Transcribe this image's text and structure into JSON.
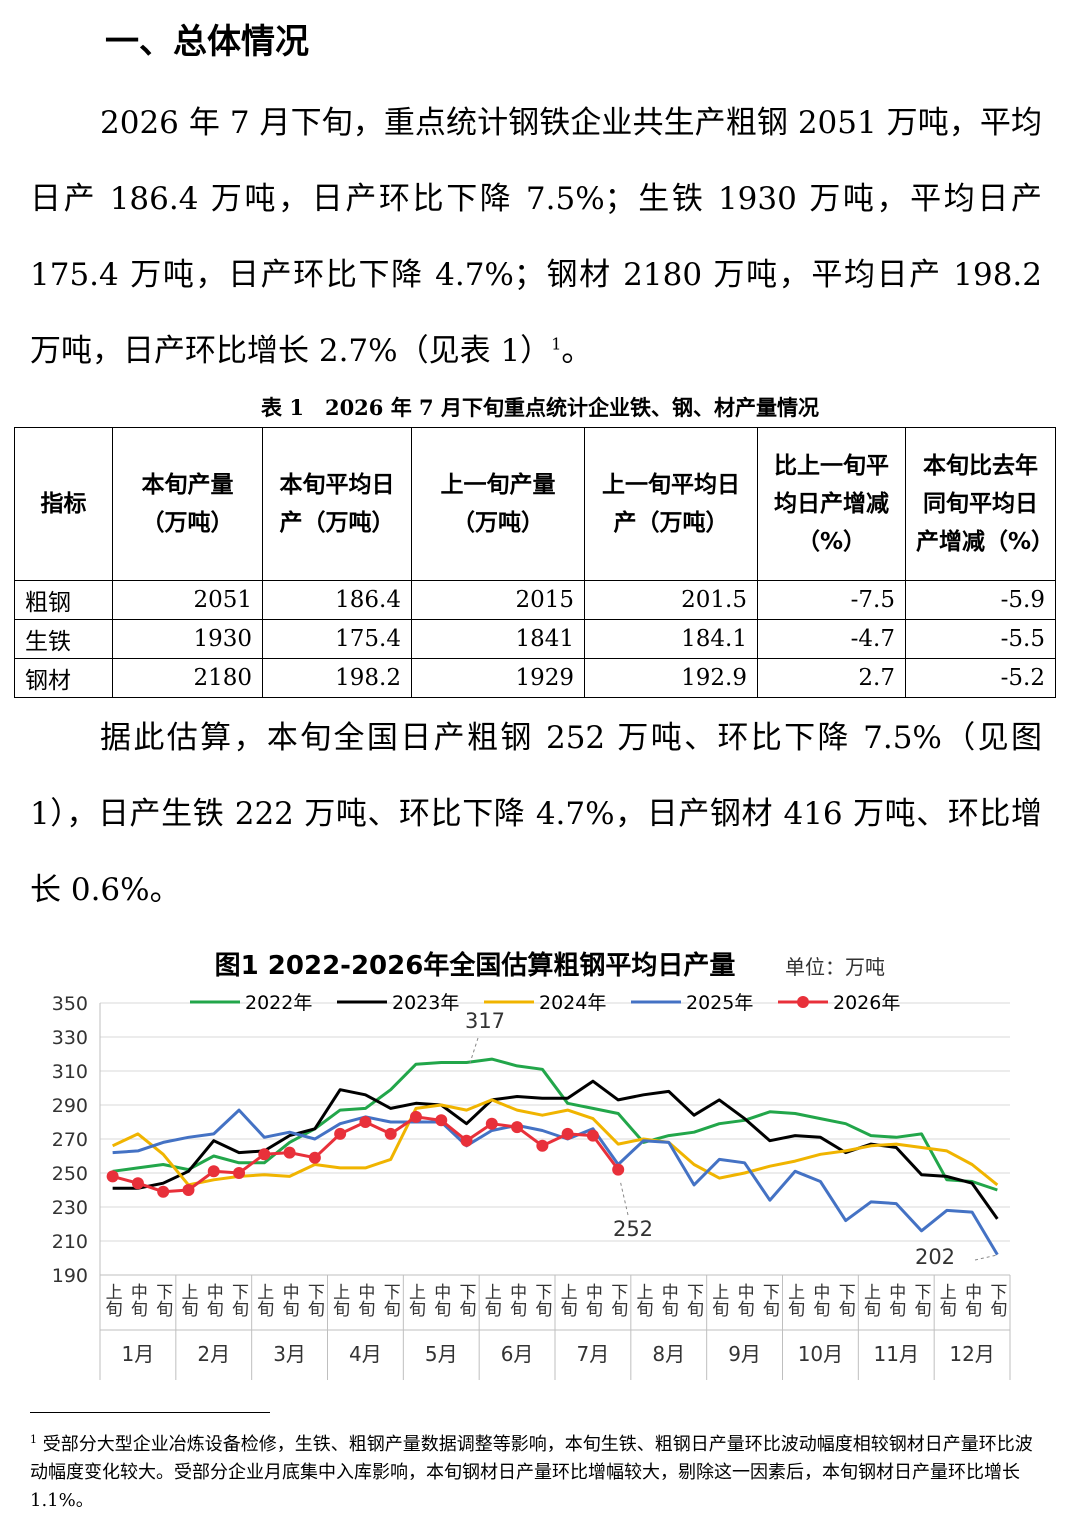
{
  "heading": "一、总体情况",
  "paragraph1": {
    "text": "2026 年 7 月下旬，重点统计钢铁企业共生产粗钢 2051 万吨，平均日产 186.4 万吨，日产环比下降 7.5%；生铁 1930 万吨，平均日产 175.4 万吨，日产环比下降 4.7%；钢材 2180 万吨，平均日产 198.2 万吨，日产环比增长 2.7%（见表 1）",
    "note_ref": "1",
    "end": "。"
  },
  "table": {
    "caption": "表 1　2026 年 7 月下旬重点统计企业铁、钢、材产量情况",
    "header": [
      "指标",
      "本旬产量（万吨）",
      "本旬平均日产（万吨）",
      "上一旬产量（万吨）",
      "上一旬平均日产（万吨）",
      "比上一旬平均日产增减（%）",
      "本旬比去年同旬平均日产增减（%）"
    ],
    "rows": [
      [
        "粗钢",
        "2051",
        "186.4",
        "2015",
        "201.5",
        "-7.5",
        "-5.9"
      ],
      [
        "生铁",
        "1930",
        "175.4",
        "1841",
        "184.1",
        "-4.7",
        "-5.5"
      ],
      [
        "钢材",
        "2180",
        "198.2",
        "1929",
        "192.9",
        "2.7",
        "-5.2"
      ]
    ]
  },
  "paragraph2": "据此估算，本旬全国日产粗钢 252 万吨、环比下降 7.5%（见图 1），日产生铁 222 万吨、环比下降 4.7%，日产钢材 416 万吨、环比增长 0.6%。",
  "chart_data": {
    "type": "line",
    "title": "图1  2022-2026年全国估算粗钢平均日产量",
    "unit": "单位：万吨",
    "categories": [
      "上旬",
      "中旬",
      "下旬",
      "上旬",
      "中旬",
      "下旬",
      "上旬",
      "中旬",
      "下旬",
      "上旬",
      "中旬",
      "下旬",
      "上旬",
      "中旬",
      "下旬",
      "上旬",
      "中旬",
      "下旬",
      "上旬",
      "中旬",
      "下旬",
      "上旬",
      "中旬",
      "下旬",
      "上旬",
      "中旬",
      "下旬",
      "上旬",
      "中旬",
      "下旬",
      "上旬",
      "中旬",
      "下旬",
      "上旬",
      "中旬",
      "下旬"
    ],
    "months": [
      "1月",
      "2月",
      "3月",
      "4月",
      "5月",
      "6月",
      "7月",
      "8月",
      "9月",
      "10月",
      "11月",
      "12月"
    ],
    "ylim": [
      190,
      350
    ],
    "yticks": [
      190,
      210,
      230,
      250,
      270,
      290,
      310,
      330,
      350
    ],
    "grid": true,
    "legend": "top",
    "series": [
      {
        "name": "2022年",
        "color": "#22a64a",
        "values": [
          251,
          253,
          255,
          252,
          260,
          256,
          256,
          268,
          276,
          287,
          288,
          299,
          314,
          315,
          315,
          317,
          313,
          311,
          291,
          288,
          285,
          268,
          272,
          274,
          279,
          281,
          286,
          285,
          282,
          279,
          272,
          271,
          273,
          246,
          245,
          240
        ]
      },
      {
        "name": "2023年",
        "color": "#000000",
        "values": [
          241,
          241,
          244,
          251,
          269,
          262,
          263,
          272,
          276,
          299,
          296,
          288,
          291,
          290,
          279,
          293,
          295,
          294,
          294,
          304,
          293,
          296,
          298,
          284,
          293,
          282,
          269,
          272,
          271,
          262,
          267,
          265,
          249,
          248,
          244,
          223
        ]
      },
      {
        "name": "2024年",
        "color": "#f0b400",
        "values": [
          266,
          273,
          261,
          243,
          246,
          248,
          249,
          248,
          255,
          253,
          253,
          258,
          288,
          290,
          287,
          293,
          287,
          284,
          287,
          282,
          267,
          270,
          268,
          255,
          247,
          250,
          254,
          257,
          261,
          263,
          266,
          267,
          265,
          263,
          255,
          243
        ]
      },
      {
        "name": "2025年",
        "color": "#4472c4",
        "values": [
          262,
          263,
          268,
          271,
          273,
          287,
          271,
          274,
          270,
          279,
          283,
          280,
          280,
          280,
          266,
          275,
          278,
          275,
          270,
          276,
          255,
          269,
          268,
          243,
          258,
          256,
          234,
          251,
          245,
          222,
          233,
          232,
          216,
          228,
          227,
          202
        ]
      },
      {
        "name": "2026年",
        "color": "#e8303a",
        "markers": true,
        "values": [
          248,
          244,
          239,
          240,
          251,
          250,
          261,
          262,
          259,
          273,
          280,
          273,
          283,
          281,
          269,
          279,
          277,
          266,
          273,
          272,
          252,
          null,
          null,
          null,
          null,
          null,
          null,
          null,
          null,
          null,
          null,
          null,
          null,
          null,
          null,
          null
        ]
      }
    ],
    "annotations": [
      "317",
      "252",
      "202"
    ]
  },
  "footnote": {
    "ref": "1",
    "text": "受部分大型企业冶炼设备检修，生铁、粗钢产量数据调整等影响，本旬生铁、粗钢日产量环比波动幅度相较钢材日产量环比波动幅度变化较大。受部分企业月底集中入库影响，本旬钢材日产量环比增幅较大，剔除这一因素后，本旬钢材日产量环比增长 1.1%。"
  }
}
